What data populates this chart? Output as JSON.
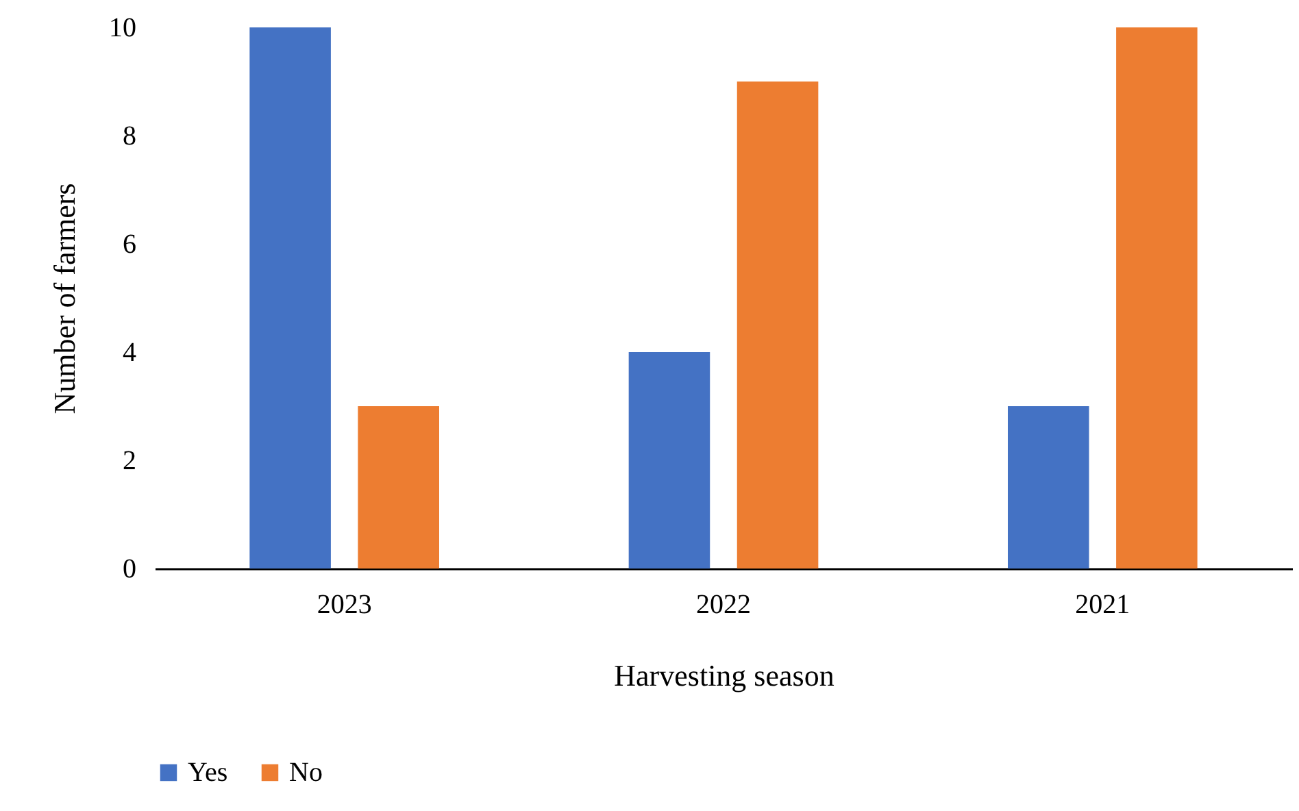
{
  "chart_data": {
    "type": "bar",
    "xlabel": "Harvesting season",
    "ylabel": "Number of farmers",
    "categories": [
      "2023",
      "2022",
      "2021"
    ],
    "series": [
      {
        "name": "Yes",
        "color": "#4472c4",
        "values": [
          10,
          4,
          3
        ]
      },
      {
        "name": "No",
        "color": "#ed7d31",
        "values": [
          3,
          9,
          10
        ]
      }
    ],
    "ylim": [
      0,
      10
    ],
    "yticks": [
      0,
      2,
      4,
      6,
      8,
      10
    ],
    "legend": "bottom"
  }
}
